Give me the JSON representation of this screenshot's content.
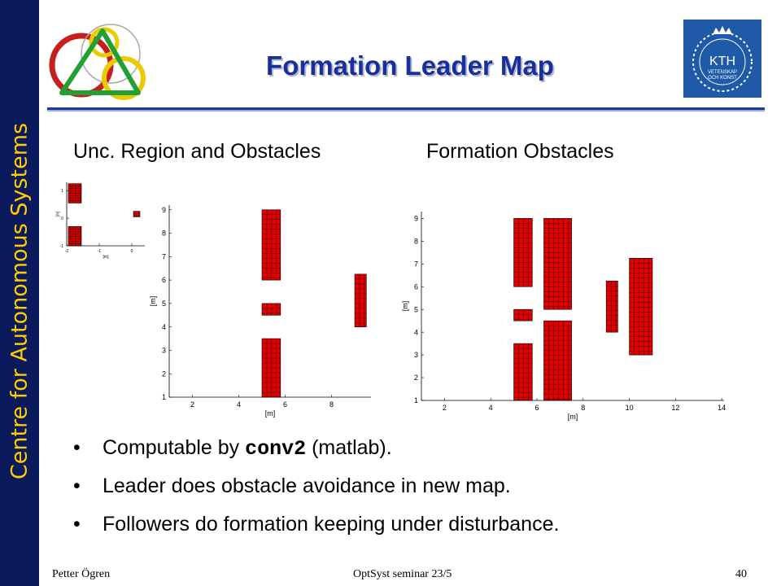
{
  "sidebar": {
    "text": "Centre for Autonomous Systems"
  },
  "kth_logo": {
    "text": "KTH",
    "subtext_1": "VETENSKAP",
    "subtext_2": "OCH KONST"
  },
  "title": "Formation Leader Map",
  "subtitles": {
    "left": "Unc. Region and Obstacles",
    "right": "Formation Obstacles"
  },
  "bullets": [
    {
      "before": "Computable by ",
      "code": "conv2",
      "after": " (matlab)."
    },
    {
      "text": "Leader does obstacle avoidance in new map."
    },
    {
      "text": "Followers do formation keeping under disturbance."
    }
  ],
  "footer": {
    "author": "Petter Ögren",
    "venue": "OptSyst seminar 23/5",
    "page": "40"
  },
  "chart_data": [
    {
      "type": "heatmap",
      "xlabel": "[m]",
      "ylabel": "[m]",
      "xlim": [
        -2,
        0.4
      ],
      "ylim": [
        -1,
        1.3
      ],
      "xticks": [
        -2,
        -1,
        0
      ],
      "yticks": [
        -1,
        0,
        1
      ],
      "fill_color": "#e00000",
      "rects": [
        {
          "x0": -1.95,
          "x1": -1.55,
          "y0": 0.55,
          "y1": 1.25
        },
        {
          "x0": -1.95,
          "x1": -1.55,
          "y0": -1.0,
          "y1": -0.3
        },
        {
          "x0": 0.05,
          "x1": 0.25,
          "y0": 0.05,
          "y1": 0.25
        }
      ]
    },
    {
      "type": "heatmap",
      "xlabel": "[m]",
      "ylabel": "[m]",
      "xlim": [
        1,
        9.7
      ],
      "ylim": [
        1,
        9.2
      ],
      "xticks": [
        2,
        4,
        6,
        8
      ],
      "yticks": [
        1,
        2,
        3,
        4,
        5,
        6,
        7,
        8,
        9
      ],
      "fill_color": "#e00000",
      "rects": [
        {
          "x0": 5,
          "x1": 5.8,
          "y0": 6,
          "y1": 9
        },
        {
          "x0": 5,
          "x1": 5.8,
          "y0": 4.5,
          "y1": 5
        },
        {
          "x0": 5,
          "x1": 5.8,
          "y0": 1,
          "y1": 3.5
        },
        {
          "x0": 9,
          "x1": 9.5,
          "y0": 4,
          "y1": 6.25
        }
      ]
    },
    {
      "type": "heatmap",
      "xlabel": "[m]",
      "ylabel": "[m]",
      "xlim": [
        1,
        14.1
      ],
      "ylim": [
        1,
        9.3
      ],
      "xticks": [
        2,
        4,
        6,
        8,
        10,
        12,
        14
      ],
      "yticks": [
        1,
        2,
        3,
        4,
        5,
        6,
        7,
        8,
        9
      ],
      "fill_color": "#e00000",
      "rects": [
        {
          "x0": 5,
          "x1": 5.8,
          "y0": 6,
          "y1": 9
        },
        {
          "x0": 5,
          "x1": 5.8,
          "y0": 4.5,
          "y1": 5
        },
        {
          "x0": 5,
          "x1": 5.8,
          "y0": 1,
          "y1": 3.5
        },
        {
          "x0": 6.3,
          "x1": 7.5,
          "y0": 5,
          "y1": 9
        },
        {
          "x0": 6.3,
          "x1": 7.5,
          "y0": 1,
          "y1": 4.5
        },
        {
          "x0": 9,
          "x1": 9.5,
          "y0": 4,
          "y1": 6.25
        },
        {
          "x0": 10,
          "x1": 11,
          "y0": 3,
          "y1": 7.25
        }
      ]
    }
  ]
}
